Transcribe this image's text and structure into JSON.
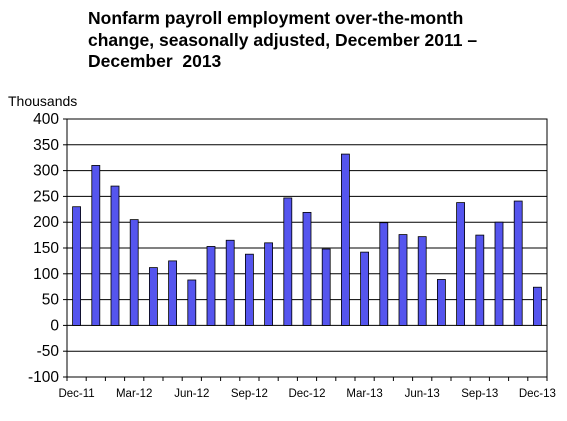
{
  "title_lines": [
    "Nonfarm payroll employment over-the-month",
    "change, seasonally adjusted, December 2011 –",
    "December  2013"
  ],
  "chart_data": {
    "type": "bar",
    "title": "Nonfarm payroll employment over-the-month change, seasonally adjusted, December 2011 – December  2013",
    "ylabel": "Thousands",
    "xlabel": "",
    "ylim": [
      -100,
      400
    ],
    "yticks": [
      -100,
      -50,
      0,
      50,
      100,
      150,
      200,
      250,
      300,
      350,
      400
    ],
    "xtick_labels": [
      "Dec-11",
      "Mar-12",
      "Jun-12",
      "Sep-12",
      "Dec-12",
      "Mar-13",
      "Jun-13",
      "Sep-13",
      "Dec-13"
    ],
    "grid": true,
    "legend": "none",
    "bar_color": "#5555ee",
    "categories": [
      "Dec-11",
      "Jan-12",
      "Feb-12",
      "Mar-12",
      "Apr-12",
      "May-12",
      "Jun-12",
      "Jul-12",
      "Aug-12",
      "Sep-12",
      "Oct-12",
      "Nov-12",
      "Dec-12",
      "Jan-13",
      "Feb-13",
      "Mar-13",
      "Apr-13",
      "May-13",
      "Jun-13",
      "Jul-13",
      "Aug-13",
      "Sep-13",
      "Oct-13",
      "Nov-13",
      "Dec-13"
    ],
    "values": [
      230,
      310,
      270,
      205,
      112,
      125,
      88,
      153,
      165,
      138,
      160,
      247,
      219,
      148,
      332,
      142,
      199,
      176,
      172,
      89,
      238,
      175,
      200,
      241,
      74
    ]
  }
}
